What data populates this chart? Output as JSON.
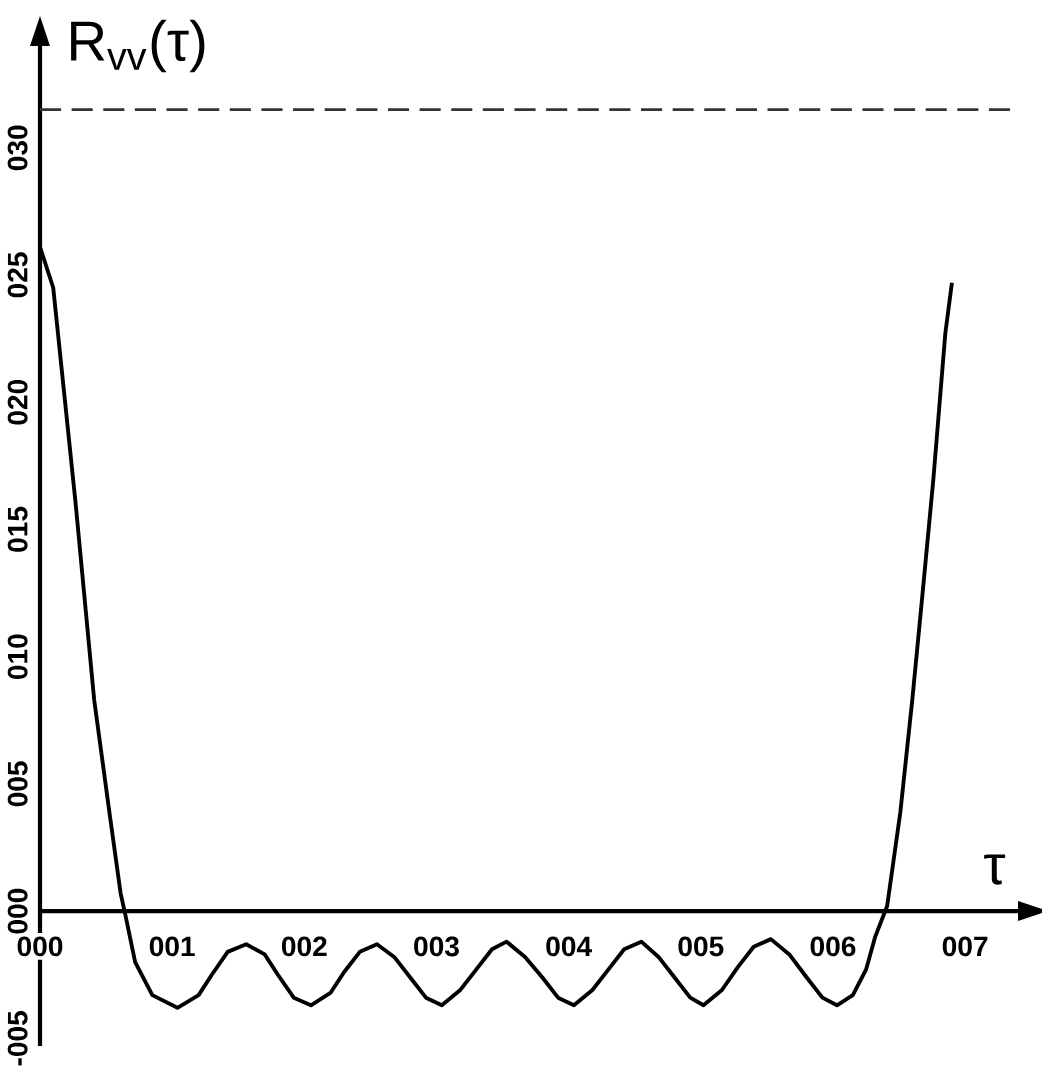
{
  "chart_data": {
    "type": "line",
    "xlabel": "τ",
    "ylabel": "R$_{vv}$(τ)",
    "xlim": [
      0,
      7.4
    ],
    "ylim": [
      -5.3,
      34
    ],
    "xticks": [
      {
        "value": 0,
        "label": "000"
      },
      {
        "value": 1,
        "label": "001"
      },
      {
        "value": 2,
        "label": "002"
      },
      {
        "value": 3,
        "label": "003"
      },
      {
        "value": 4,
        "label": "004"
      },
      {
        "value": 5,
        "label": "005"
      },
      {
        "value": 6,
        "label": "006"
      },
      {
        "value": 7,
        "label": "007"
      }
    ],
    "yticks": [
      {
        "value": -5,
        "label": "-005"
      },
      {
        "value": 0,
        "label": "000"
      },
      {
        "value": 5,
        "label": "005"
      },
      {
        "value": 10,
        "label": "010"
      },
      {
        "value": 15,
        "label": "015"
      },
      {
        "value": 20,
        "label": "020"
      },
      {
        "value": 25,
        "label": "025"
      },
      {
        "value": 30,
        "label": "030"
      }
    ],
    "ref_lines": [
      {
        "axis": "y",
        "value": 31.5,
        "color": "#333333",
        "line_style": "dashed"
      }
    ],
    "series": [
      {
        "color": "#000000",
        "x": [
          0,
          0.1,
          0.27,
          0.41,
          0.53,
          0.61,
          0.64,
          0.72,
          0.85,
          1.04,
          1.2,
          1.3,
          1.42,
          1.56,
          1.7,
          1.8,
          1.92,
          2.05,
          2.2,
          2.3,
          2.42,
          2.55,
          2.68,
          2.8,
          2.92,
          3.04,
          3.18,
          3.3,
          3.42,
          3.53,
          3.67,
          3.8,
          3.92,
          4.04,
          4.18,
          4.3,
          4.42,
          4.55,
          4.68,
          4.8,
          4.92,
          5.02,
          5.16,
          5.28,
          5.4,
          5.53,
          5.67,
          5.8,
          5.92,
          6.03,
          6.15,
          6.25,
          6.32,
          6.41,
          6.51,
          6.6,
          6.68,
          6.76,
          6.85,
          6.9
        ],
        "values": [
          26.1,
          24.5,
          16.0,
          8.3,
          3.7,
          0.7,
          0,
          -2.0,
          -3.3,
          -3.8,
          -3.3,
          -2.5,
          -1.6,
          -1.3,
          -1.7,
          -2.5,
          -3.4,
          -3.7,
          -3.2,
          -2.4,
          -1.6,
          -1.3,
          -1.8,
          -2.6,
          -3.4,
          -3.7,
          -3.1,
          -2.3,
          -1.5,
          -1.2,
          -1.8,
          -2.6,
          -3.4,
          -3.7,
          -3.1,
          -2.3,
          -1.5,
          -1.2,
          -1.8,
          -2.6,
          -3.4,
          -3.7,
          -3.1,
          -2.2,
          -1.4,
          -1.1,
          -1.7,
          -2.6,
          -3.4,
          -3.7,
          -3.3,
          -2.3,
          -1.0,
          0.2,
          3.9,
          8.3,
          12.6,
          17.0,
          22.7,
          24.7
        ]
      }
    ]
  }
}
